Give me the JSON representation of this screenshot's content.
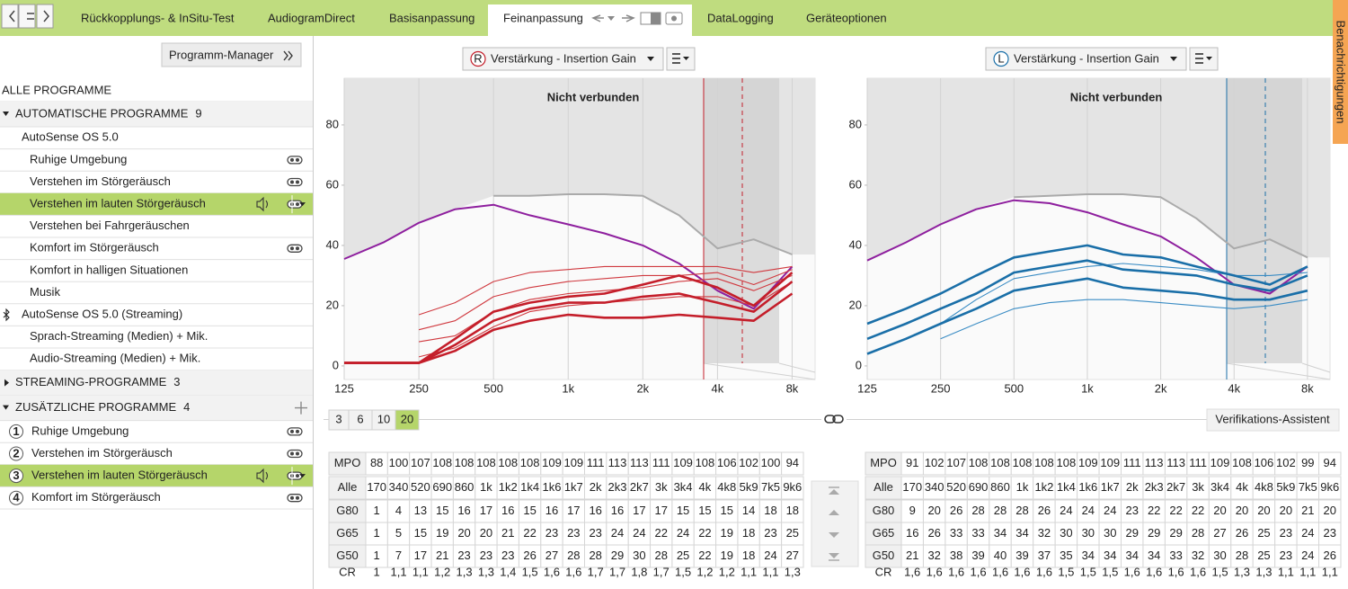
{
  "tabs": [
    "Rückkopplungs- & InSitu-Test",
    "AudiogramDirect",
    "Basisanpassung",
    "Feinanpassung",
    "DataLogging",
    "Geräteoptionen"
  ],
  "notifications": "Benachrichtigungen",
  "program_manager": "Programm-Manager",
  "all_programs": "ALLE PROGRAMME",
  "groups": [
    {
      "title": "AUTOMATISCHE PROGRAMME",
      "count": 9,
      "items": [
        {
          "label": "AutoSense OS 5.0",
          "items": [
            "Ruhige Umgebung",
            "Verstehen im Störgeräusch",
            "Verstehen im lauten Störgeräusch",
            "Verstehen bei Fahrgeräuschen",
            "Komfort im Störgeräusch",
            "Komfort in halligen Situationen",
            "Musik"
          ]
        },
        {
          "label": "AutoSense OS 5.0 (Streaming)",
          "items": [
            "Sprach-Streaming (Medien) + Mik.",
            "Audio-Streaming (Medien) + Mik."
          ]
        }
      ]
    },
    {
      "title": "STREAMING-PROGRAMME",
      "count": 3,
      "items": []
    },
    {
      "title": "ZUSÄTZLICHE PROGRAMME",
      "count": 4,
      "items": [
        {
          "number": 1,
          "label": "Ruhige Umgebung"
        },
        {
          "number": 2,
          "label": "Verstehen im Störgeräusch"
        },
        {
          "number": 3,
          "label": "Verstehen im lauten Störgeräusch"
        },
        {
          "number": 4,
          "label": "Komfort im Störgeräusch"
        }
      ]
    }
  ],
  "chart_data": [
    {
      "type": "line",
      "title": "Nicht verbunden",
      "dropdown": "Verstärkung - Insertion Gain",
      "side": "R",
      "color": "#c41e2a",
      "x": [
        125,
        180,
        250,
        350,
        500,
        700,
        1000,
        1400,
        2000,
        2800,
        4000,
        5600,
        8000
      ],
      "xlim": [
        125,
        9900
      ],
      "xlog": true,
      "xticks": [
        125,
        250,
        500,
        {
          "value": 1000,
          "label": "1k"
        },
        {
          "value": 2000,
          "label": "2k"
        },
        {
          "value": 4000,
          "label": "4k"
        },
        {
          "value": 8000,
          "label": "8k"
        }
      ],
      "ylim": [
        -4.5,
        95.5
      ],
      "yticks": [
        0,
        20,
        40,
        60,
        80
      ],
      "grid": "x",
      "series": [
        {
          "color": "#aaaaaa",
          "fill": "above",
          "values": [
            null,
            null,
            null,
            null,
            56.5,
            56.5,
            57,
            57,
            56.5,
            50,
            39,
            42,
            37
          ]
        },
        {
          "color": "#8e1f9e",
          "fill": "above",
          "values": [
            35.5,
            41,
            47.5,
            52,
            53.5,
            50,
            47,
            44,
            40,
            34,
            25,
            19,
            33
          ]
        },
        {
          "color": "#d0393f",
          "values": [
            null,
            null,
            17,
            21,
            28,
            31,
            32,
            33,
            33,
            33,
            33,
            31,
            33
          ]
        },
        {
          "color": "#d0393f",
          "values": [
            null,
            null,
            12,
            15,
            23,
            26,
            28,
            29,
            30,
            30,
            31,
            27,
            32
          ]
        },
        {
          "color": "#d0393f",
          "values": [
            null,
            null,
            8,
            10,
            18,
            22,
            24,
            25,
            26,
            28,
            29,
            25,
            30
          ]
        },
        {
          "color": "#d0393f",
          "values": [
            null,
            null,
            3,
            6,
            13,
            18,
            20,
            21,
            22,
            23,
            23,
            20,
            28
          ]
        },
        {
          "color": "#c41e2a",
          "emphasis": true,
          "values": [
            1,
            1,
            1,
            5,
            12,
            15,
            17,
            16,
            16,
            17,
            16,
            15,
            24
          ]
        },
        {
          "color": "#c41e2a",
          "emphasis": true,
          "values": [
            1,
            1,
            1,
            7,
            15,
            19,
            21,
            21,
            23,
            24,
            21,
            18,
            28
          ]
        },
        {
          "color": "#c41e2a",
          "emphasis": true,
          "values": [
            1,
            1,
            1,
            9,
            18,
            21,
            23,
            24,
            27,
            30,
            26,
            20,
            31
          ]
        }
      ]
    },
    {
      "type": "line",
      "title": "Nicht verbunden",
      "dropdown": "Verstärkung - Insertion Gain",
      "side": "L",
      "color": "#1a6fa8",
      "x": [
        125,
        180,
        250,
        350,
        500,
        700,
        1000,
        1400,
        2000,
        2800,
        4000,
        5600,
        8000
      ],
      "xlim": [
        125,
        9900
      ],
      "xlog": true,
      "xticks": [
        125,
        250,
        500,
        {
          "value": 1000,
          "label": "1k"
        },
        {
          "value": 2000,
          "label": "2k"
        },
        {
          "value": 4000,
          "label": "4k"
        },
        {
          "value": 8000,
          "label": "8k"
        }
      ],
      "ylim": [
        -4.5,
        95.5
      ],
      "yticks": [
        0,
        20,
        40,
        60,
        80
      ],
      "grid": "x",
      "series": [
        {
          "color": "#aaaaaa",
          "fill": "above",
          "values": [
            null,
            null,
            null,
            null,
            56,
            56.5,
            57,
            57,
            56,
            49,
            39,
            42,
            36
          ]
        },
        {
          "color": "#8e1f9e",
          "fill": "above",
          "values": [
            35,
            41,
            47,
            52,
            55,
            54,
            51,
            47,
            43,
            36,
            27,
            24,
            33
          ]
        },
        {
          "color": "#3a8cc4",
          "values": [
            null,
            null,
            14,
            22,
            29,
            31,
            33,
            34,
            33,
            32,
            30,
            30,
            31
          ]
        },
        {
          "color": "#3a8cc4",
          "values": [
            null,
            null,
            9,
            14,
            19,
            21,
            22,
            22,
            21,
            20,
            19,
            20,
            22
          ]
        },
        {
          "color": "#1a6fa8",
          "emphasis": true,
          "values": [
            14,
            19,
            24,
            30,
            36,
            38,
            40,
            37,
            36,
            33,
            30,
            27,
            33
          ]
        },
        {
          "color": "#1a6fa8",
          "emphasis": true,
          "values": [
            9,
            14,
            19,
            24,
            31,
            33,
            35,
            32,
            31,
            30,
            27,
            25,
            30
          ]
        },
        {
          "color": "#1a6fa8",
          "emphasis": true,
          "values": [
            4,
            9,
            14,
            19,
            25,
            27,
            29,
            26,
            25,
            24,
            22,
            22,
            25
          ]
        }
      ]
    }
  ],
  "resolutions": [
    3,
    6,
    10,
    20
  ],
  "verification": "Verifikations-Assistent",
  "tables": [
    {
      "rows": [
        {
          "label": "MPO",
          "values": [
            88,
            100,
            107,
            108,
            108,
            108,
            108,
            108,
            109,
            109,
            111,
            113,
            113,
            111,
            109,
            108,
            106,
            102,
            100,
            94
          ]
        },
        {
          "label": "Alle",
          "values": [
            "170",
            "340",
            "520",
            "690",
            "860",
            "1k",
            "1k2",
            "1k4",
            "1k6",
            "1k7",
            "2k",
            "2k3",
            "2k7",
            "3k",
            "3k4",
            "4k",
            "4k8",
            "5k9",
            "7k5",
            "9k6"
          ]
        },
        {
          "label": "G80",
          "values": [
            1,
            4,
            13,
            15,
            16,
            17,
            16,
            15,
            16,
            17,
            16,
            16,
            17,
            17,
            15,
            15,
            15,
            14,
            18,
            18
          ]
        },
        {
          "label": "G65",
          "values": [
            1,
            5,
            15,
            19,
            20,
            20,
            21,
            22,
            23,
            23,
            23,
            24,
            24,
            22,
            24,
            22,
            19,
            18,
            23,
            25
          ]
        },
        {
          "label": "G50",
          "values": [
            1,
            7,
            17,
            21,
            23,
            23,
            23,
            26,
            27,
            28,
            28,
            29,
            30,
            28,
            25,
            22,
            19,
            18,
            24,
            27
          ]
        },
        {
          "label": "CR",
          "values": [
            "1",
            "1,1",
            "1,1",
            "1,2",
            "1,3",
            "1,3",
            "1,4",
            "1,5",
            "1,6",
            "1,6",
            "1,7",
            "1,7",
            "1,8",
            "1,7",
            "1,5",
            "1,2",
            "1,2",
            "1,1",
            "1,1",
            "1,3"
          ]
        }
      ]
    },
    {
      "rows": [
        {
          "label": "MPO",
          "values": [
            91,
            102,
            107,
            108,
            108,
            108,
            108,
            108,
            109,
            109,
            111,
            113,
            113,
            111,
            109,
            108,
            106,
            102,
            99,
            94
          ]
        },
        {
          "label": "Alle",
          "values": [
            "170",
            "340",
            "520",
            "690",
            "860",
            "1k",
            "1k2",
            "1k4",
            "1k6",
            "1k7",
            "2k",
            "2k3",
            "2k7",
            "3k",
            "3k4",
            "4k",
            "4k8",
            "5k9",
            "7k5",
            "9k6"
          ]
        },
        {
          "label": "G80",
          "values": [
            9,
            20,
            26,
            28,
            28,
            28,
            26,
            24,
            24,
            24,
            23,
            22,
            22,
            22,
            20,
            20,
            20,
            20,
            21,
            20
          ]
        },
        {
          "label": "G65",
          "values": [
            16,
            26,
            33,
            33,
            34,
            34,
            32,
            30,
            30,
            30,
            29,
            29,
            29,
            28,
            27,
            26,
            25,
            23,
            24,
            23
          ]
        },
        {
          "label": "G50",
          "values": [
            21,
            32,
            38,
            39,
            40,
            39,
            37,
            35,
            34,
            34,
            34,
            34,
            33,
            32,
            30,
            28,
            25,
            23,
            24,
            26
          ]
        },
        {
          "label": "CR",
          "values": [
            "1,6",
            "1,6",
            "1,6",
            "1,6",
            "1,6",
            "1,6",
            "1,6",
            "1,5",
            "1,5",
            "1,5",
            "1,6",
            "1,6",
            "1,6",
            "1,6",
            "1,5",
            "1,3",
            "1,3",
            "1,1",
            "1,1",
            "1,1"
          ]
        }
      ]
    }
  ]
}
